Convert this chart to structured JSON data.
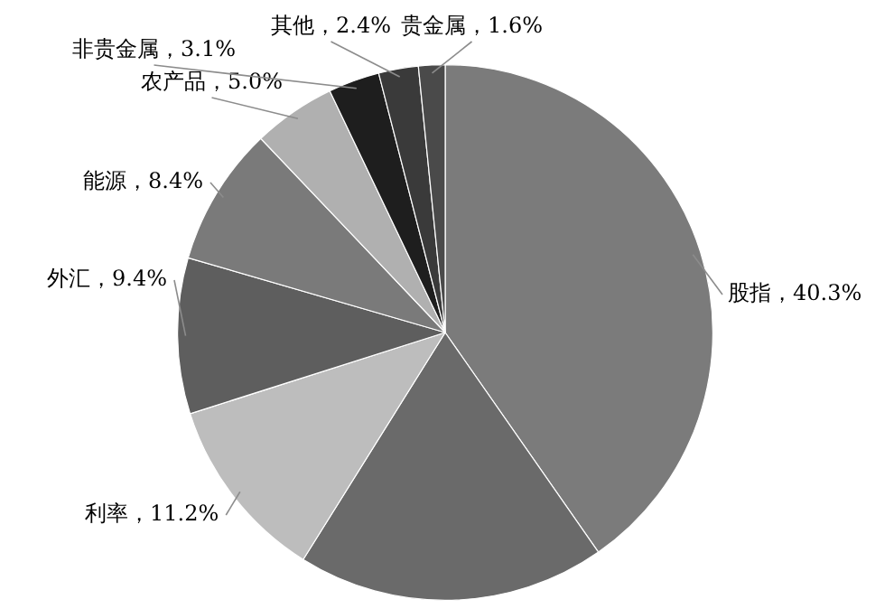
{
  "chart_data": {
    "type": "pie",
    "categories": [
      "股指",
      null,
      "利率",
      "外汇",
      "能源",
      "农产品",
      "非贵金属",
      "其他",
      "贵金属"
    ],
    "values": [
      40.3,
      18.6,
      11.2,
      9.4,
      8.4,
      5.0,
      3.1,
      2.4,
      1.6
    ],
    "value_labels": [
      "40.3%",
      null,
      "11.2%",
      "9.4%",
      "8.4%",
      "5.0%",
      "3.1%",
      "2.4%",
      "1.6%"
    ],
    "colors": [
      "#7b7b7b",
      "#6a6a6a",
      "#bdbdbd",
      "#5e5e5e",
      "#7a7a7a",
      "#b0b0b0",
      "#1e1e1e",
      "#3a3a3a",
      "#4a4a4a"
    ],
    "legend": false
  }
}
